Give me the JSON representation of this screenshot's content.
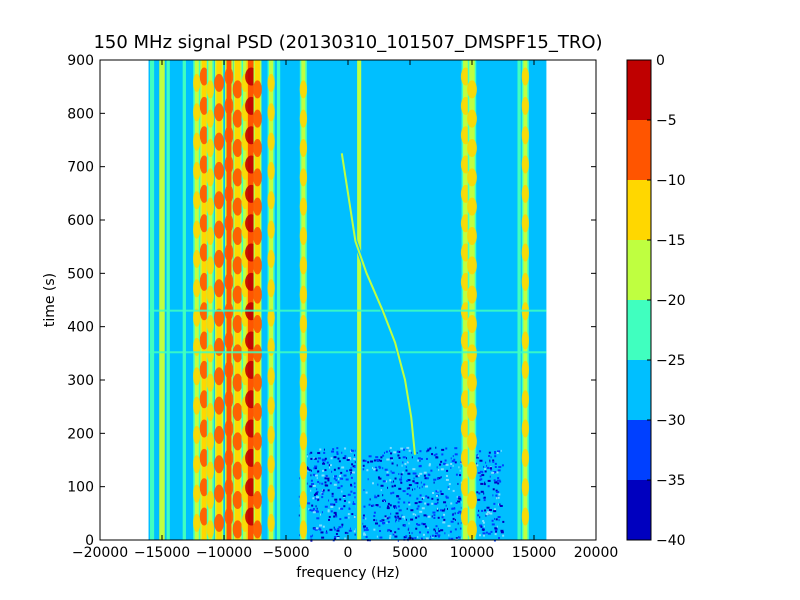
{
  "chart_data": {
    "type": "heatmap",
    "title": "150 MHz signal PSD (20130310_101507_DMSPF15_TRO)",
    "xlabel": "frequency (Hz)",
    "ylabel": "time (s)",
    "xlim": [
      -20000,
      20000
    ],
    "ylim": [
      0,
      900
    ],
    "xticks": [
      -20000,
      -15000,
      -10000,
      -5000,
      0,
      5000,
      10000,
      15000,
      20000
    ],
    "xtick_labels": [
      "−20000",
      "−15000",
      "−10000",
      "−5000",
      "0",
      "5000",
      "10000",
      "15000",
      "20000"
    ],
    "yticks": [
      0,
      100,
      200,
      300,
      400,
      500,
      600,
      700,
      800,
      900
    ],
    "ytick_labels": [
      "0",
      "100",
      "200",
      "300",
      "400",
      "500",
      "600",
      "700",
      "800",
      "900"
    ],
    "data_extent": {
      "freq": [
        -16000,
        16000
      ],
      "time": [
        0,
        900
      ]
    },
    "colorbar": {
      "levels": [
        -40,
        -35,
        -30,
        -25,
        -20,
        -15,
        -10,
        -5,
        0
      ],
      "tick_labels": [
        "−40",
        "−35",
        "−30",
        "−25",
        "−20",
        "−15",
        "−10",
        "−5",
        "0"
      ],
      "colors": [
        "#0000bf",
        "#0040ff",
        "#00bfff",
        "#40ffbf",
        "#bfff40",
        "#ffd700",
        "#ff5500",
        "#bf0000"
      ]
    },
    "background_level_db": -27,
    "noise_band": {
      "time": [
        0,
        175
      ],
      "freq": [
        -4000,
        12500
      ]
    },
    "lines": [
      {
        "freq": -15800,
        "width": 150,
        "level_db": -22
      },
      {
        "freq": -15000,
        "width": 200,
        "level_db": -20
      },
      {
        "freq": -14500,
        "width": 120,
        "level_db": -22
      },
      {
        "freq": -13200,
        "width": 120,
        "level_db": -22
      },
      {
        "freq": -12200,
        "width": 150,
        "level_db": -18
      },
      {
        "freq": -11600,
        "width": 180,
        "level_db": -14
      },
      {
        "freq": -11100,
        "width": 150,
        "level_db": -16
      },
      {
        "freq": -10400,
        "width": 200,
        "level_db": -12
      },
      {
        "freq": -9600,
        "width": 180,
        "level_db": -10
      },
      {
        "freq": -8900,
        "width": 200,
        "level_db": -12
      },
      {
        "freq": -8300,
        "width": 150,
        "level_db": -16
      },
      {
        "freq": -7800,
        "width": 250,
        "level_db": -7
      },
      {
        "freq": -7300,
        "width": 180,
        "level_db": -14
      },
      {
        "freq": -6200,
        "width": 150,
        "level_db": -18
      },
      {
        "freq": -5600,
        "width": 120,
        "level_db": -22
      },
      {
        "freq": -3600,
        "width": 150,
        "level_db": -16
      },
      {
        "freq": 900,
        "width": 150,
        "level_db": -20
      },
      {
        "freq": 9500,
        "width": 200,
        "level_db": -18
      },
      {
        "freq": 10000,
        "width": 200,
        "level_db": -16
      },
      {
        "freq": 13800,
        "width": 120,
        "level_db": -22
      },
      {
        "freq": 14300,
        "width": 150,
        "level_db": -18
      }
    ],
    "doppler_trace": {
      "level_db": -20,
      "points": [
        {
          "time": 725,
          "freq": -500
        },
        {
          "time": 650,
          "freq": 0
        },
        {
          "time": 560,
          "freq": 600
        },
        {
          "time": 500,
          "freq": 1500
        },
        {
          "time": 430,
          "freq": 2800
        },
        {
          "time": 370,
          "freq": 3800
        },
        {
          "time": 300,
          "freq": 4600
        },
        {
          "time": 230,
          "freq": 5100
        },
        {
          "time": 160,
          "freq": 5400
        }
      ]
    },
    "bursts": [
      {
        "time": 430,
        "level_db": -22
      },
      {
        "time": 352,
        "level_db": -24
      }
    ],
    "grid": false
  }
}
